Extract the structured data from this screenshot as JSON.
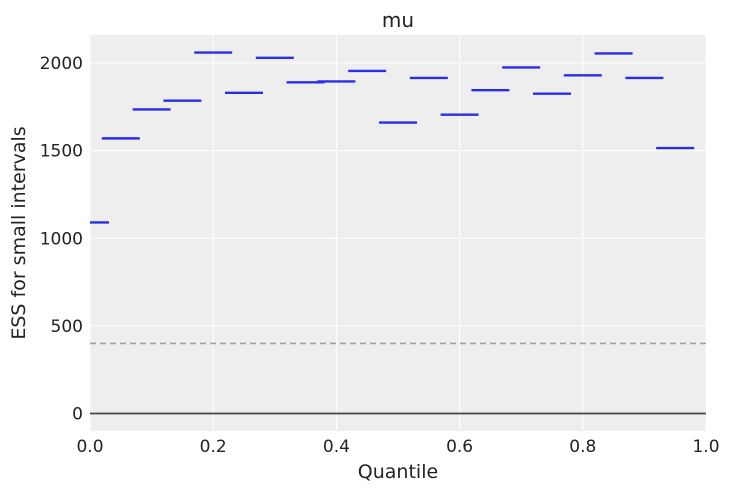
{
  "chart_data": {
    "type": "scatter",
    "title": "mu",
    "xlabel": "Quantile",
    "ylabel": "ESS for small intervals",
    "xlim": [
      0.0,
      1.0
    ],
    "ylim": [
      -100,
      2160
    ],
    "x_ticks": [
      0.0,
      0.2,
      0.4,
      0.6,
      0.8,
      1.0
    ],
    "x_tick_labels": [
      "0.0",
      "0.2",
      "0.4",
      "0.6",
      "0.8",
      "1.0"
    ],
    "y_ticks": [
      0,
      500,
      1000,
      1500,
      2000
    ],
    "y_tick_labels": [
      "0",
      "500",
      "1000",
      "1500",
      "2000"
    ],
    "grid": true,
    "marker": "horizontal-bar",
    "series": [
      {
        "color": "#2a2eec",
        "x": [
          0.0,
          0.05,
          0.1,
          0.15,
          0.2,
          0.25,
          0.3,
          0.35,
          0.4,
          0.45,
          0.5,
          0.55,
          0.6,
          0.65,
          0.7,
          0.75,
          0.8,
          0.85,
          0.9,
          0.95
        ],
        "values": [
          1090,
          1570,
          1735,
          1785,
          2060,
          1830,
          2030,
          1890,
          1895,
          1955,
          1660,
          1915,
          1705,
          1845,
          1975,
          1825,
          1930,
          2055,
          1915,
          1515
        ]
      }
    ],
    "reference_lines": [
      {
        "y": 400,
        "style": "dashed",
        "color": "#a0a0a0"
      },
      {
        "y": 0,
        "style": "solid",
        "color": "#444444"
      }
    ],
    "background_color": "#eeeeee"
  }
}
